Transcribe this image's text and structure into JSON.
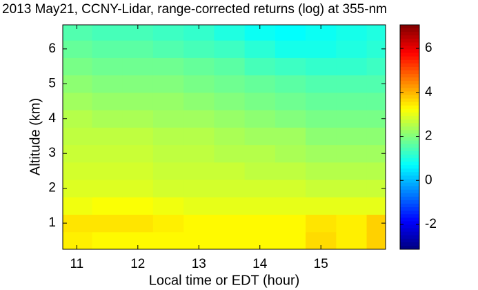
{
  "chart_data": {
    "type": "heatmap",
    "title": "2013 May21, CCNY-Lidar, range-corrected returns (log) at 355-nm",
    "x_label": "Local time or EDT (hour)",
    "y_label": "Altitude (km)",
    "colormap": "jet",
    "x": [
      11.0,
      11.5,
      12.0,
      12.5,
      13.0,
      13.5,
      14.0,
      14.5,
      15.0,
      15.5,
      16.0
    ],
    "y": [
      0.5,
      1.0,
      1.5,
      2.0,
      2.5,
      3.0,
      3.5,
      4.0,
      4.5,
      5.0,
      5.5,
      6.0,
      6.5
    ],
    "z": [
      [
        3.4,
        3.3,
        3.3,
        3.3,
        3.3,
        3.3,
        3.3,
        3.3,
        3.6,
        3.4,
        3.7
      ],
      [
        3.5,
        3.5,
        3.5,
        3.4,
        3.3,
        3.3,
        3.3,
        3.3,
        3.5,
        3.4,
        3.7
      ],
      [
        3.1,
        3.2,
        3.2,
        3.1,
        3.0,
        3.0,
        3.0,
        3.0,
        3.0,
        3.0,
        3.0
      ],
      [
        2.9,
        2.9,
        2.9,
        2.8,
        2.8,
        2.8,
        2.8,
        2.8,
        2.7,
        2.7,
        2.7
      ],
      [
        2.8,
        2.8,
        2.8,
        2.7,
        2.7,
        2.7,
        2.6,
        2.6,
        2.5,
        2.5,
        2.5
      ],
      [
        2.7,
        2.7,
        2.7,
        2.6,
        2.6,
        2.5,
        2.5,
        2.4,
        2.3,
        2.3,
        2.3
      ],
      [
        2.6,
        2.6,
        2.6,
        2.5,
        2.5,
        2.4,
        2.3,
        2.3,
        2.1,
        2.1,
        2.1
      ],
      [
        2.5,
        2.4,
        2.4,
        2.3,
        2.3,
        2.2,
        2.1,
        2.0,
        1.9,
        1.9,
        1.9
      ],
      [
        2.3,
        2.2,
        2.2,
        2.2,
        2.1,
        2.0,
        1.9,
        1.8,
        1.7,
        1.7,
        1.7
      ],
      [
        2.1,
        2.0,
        2.0,
        2.0,
        1.9,
        1.8,
        1.7,
        1.6,
        1.5,
        1.5,
        1.5
      ],
      [
        1.9,
        1.8,
        1.8,
        1.8,
        1.7,
        1.6,
        1.4,
        1.3,
        1.2,
        1.2,
        1.3
      ],
      [
        1.7,
        1.6,
        1.6,
        1.5,
        1.4,
        1.3,
        1.1,
        0.9,
        0.9,
        1.0,
        1.1
      ],
      [
        1.5,
        1.4,
        1.4,
        1.3,
        1.2,
        1.0,
        0.8,
        0.7,
        0.8,
        0.9,
        1.0
      ]
    ],
    "xlim": [
      10.77,
      16.06
    ],
    "ylim": [
      0.25,
      6.69
    ],
    "xticks": [
      11,
      12,
      13,
      14,
      15
    ],
    "yticks": [
      1,
      2,
      3,
      4,
      5,
      6
    ],
    "clim": [
      -3.13,
      7.07
    ],
    "cticks": [
      -2,
      0,
      2,
      4,
      6
    ]
  }
}
